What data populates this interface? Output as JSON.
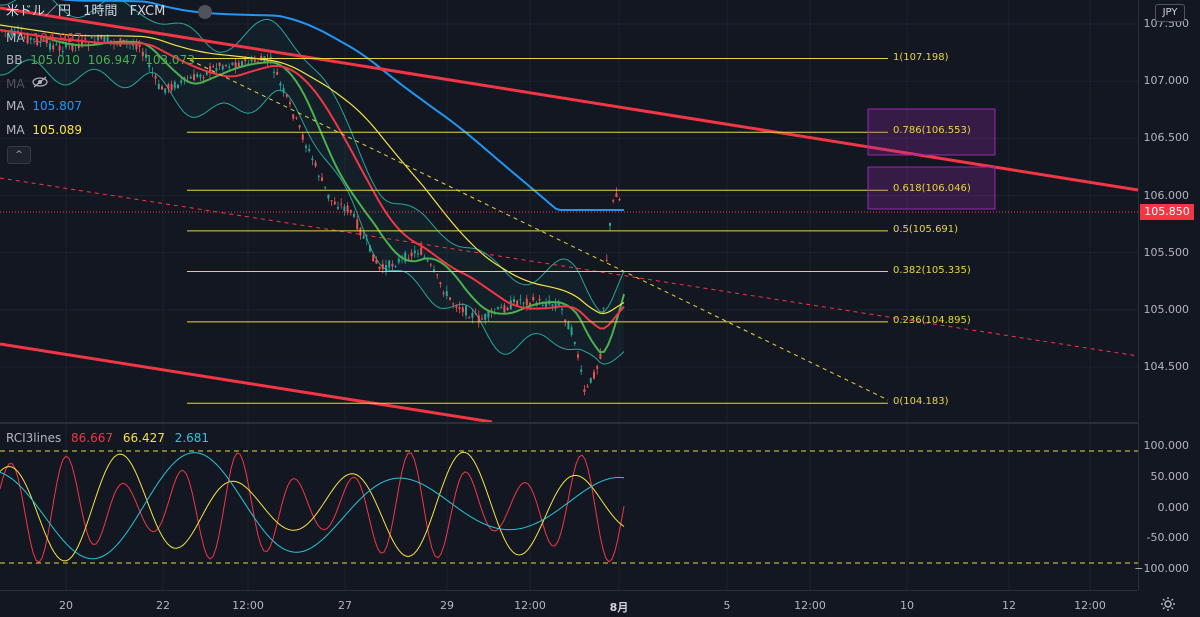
{
  "header": {
    "symbol": "米ドル／円",
    "interval": "1時間",
    "source": "FXCM"
  },
  "indicators": [
    {
      "name": "MA",
      "value": "104.997",
      "color": "#f23645"
    },
    {
      "name": "BB",
      "value": "105.010",
      "value2": "106.947",
      "value3": "103.073",
      "color": "#4caf50"
    },
    {
      "name": "MA",
      "value": "",
      "color": "#787b86",
      "icon": "eye-off-icon"
    },
    {
      "name": "MA",
      "value": "105.807",
      "color": "#2196f3"
    },
    {
      "name": "MA",
      "value": "105.089",
      "color": "#f5e342"
    }
  ],
  "collapse_label": "^",
  "price_axis": {
    "currency": "JPY",
    "labels": [
      "107.500",
      "107.000",
      "106.500",
      "106.000",
      "105.500",
      "105.000",
      "104.500"
    ],
    "current_price": "105.850",
    "rci_labels": [
      "100.000",
      "50.000",
      "0.000",
      "-50.000",
      "−100.000"
    ]
  },
  "time_axis": {
    "labels": [
      {
        "text": "20",
        "bold": false
      },
      {
        "text": "22",
        "bold": false
      },
      {
        "text": "12:00",
        "bold": false
      },
      {
        "text": "27",
        "bold": false
      },
      {
        "text": "29",
        "bold": false
      },
      {
        "text": "12:00",
        "bold": false
      },
      {
        "text": "8月",
        "bold": true
      },
      {
        "text": "5",
        "bold": false
      },
      {
        "text": "12:00",
        "bold": false
      },
      {
        "text": "10",
        "bold": false
      },
      {
        "text": "12",
        "bold": false
      },
      {
        "text": "12:00",
        "bold": false
      }
    ]
  },
  "fib_levels": [
    {
      "label": "1(107.198)",
      "price": 107.198
    },
    {
      "label": "0.786(106.553)",
      "price": 106.553
    },
    {
      "label": "0.618(106.046)",
      "price": 106.046
    },
    {
      "label": "0.5(105.691)",
      "price": 105.691
    },
    {
      "label": "0.382(105.335)",
      "price": 105.335
    },
    {
      "label": "0.236(104.895)",
      "price": 104.895
    },
    {
      "label": "0(104.183)",
      "price": 104.183
    }
  ],
  "rci": {
    "name": "RCI3lines",
    "values": [
      {
        "value": "86.667",
        "color": "#f23645"
      },
      {
        "value": "66.427",
        "color": "#f5e342"
      },
      {
        "value": "2.681",
        "color": "#26c6da"
      }
    ]
  },
  "colors": {
    "background": "#131722",
    "trendline": "#f23645",
    "fib": "#e6d73a",
    "rect": "#9c27b0"
  }
}
